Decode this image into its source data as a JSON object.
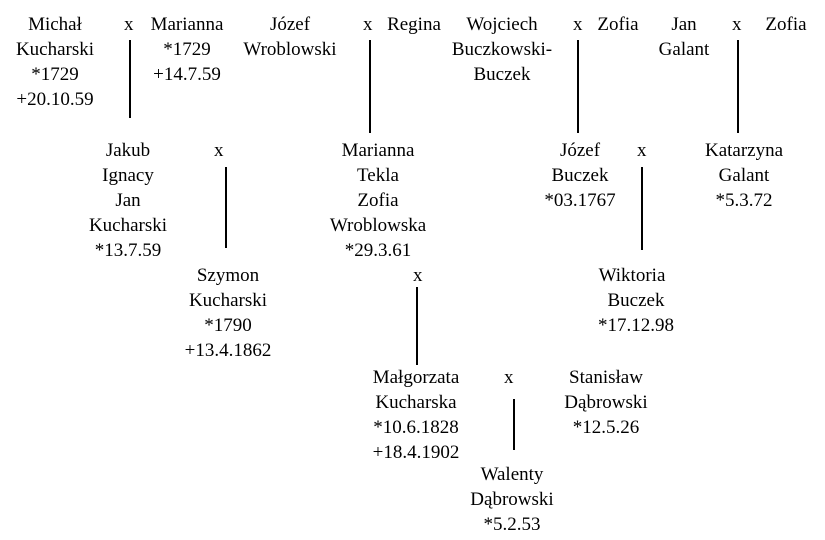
{
  "people": {
    "michal": [
      "Michał",
      "Kucharski",
      "*1729",
      "+20.10.59"
    ],
    "marianna": [
      "Marianna",
      "*1729",
      "+14.7.59"
    ],
    "jozef_w": [
      "Józef",
      "Wroblowski"
    ],
    "regina": [
      "Regina"
    ],
    "wojciech": [
      "Wojciech",
      "Buczkowski-",
      "Buczek"
    ],
    "zofia_1": [
      "Zofia"
    ],
    "jan_g": [
      "Jan",
      "Galant"
    ],
    "zofia_2": [
      "Zofia"
    ],
    "jakub": [
      "Jakub",
      "Ignacy",
      "Jan",
      "Kucharski",
      "*13.7.59"
    ],
    "marianna_t": [
      "Marianna",
      "Tekla",
      "Zofia",
      "Wroblowska",
      "*29.3.61"
    ],
    "jozef_b": [
      "Józef",
      "Buczek",
      "*03.1767"
    ],
    "katarzyna": [
      "Katarzyna",
      "Galant",
      "*5.3.72"
    ],
    "szymon": [
      "Szymon",
      "Kucharski",
      "*1790",
      "+13.4.1862"
    ],
    "wiktoria": [
      "Wiktoria",
      "Buczek",
      "*17.12.98"
    ],
    "malgorzata": [
      "Małgorzata",
      "Kucharska",
      "*10.6.1828",
      "+18.4.1902"
    ],
    "stanislaw": [
      "Stanisław",
      "Dąbrowski",
      "*12.5.26"
    ],
    "walenty": [
      "Walenty",
      "Dąbrowski",
      "*5.2.53"
    ]
  },
  "marriage_symbol": "x"
}
